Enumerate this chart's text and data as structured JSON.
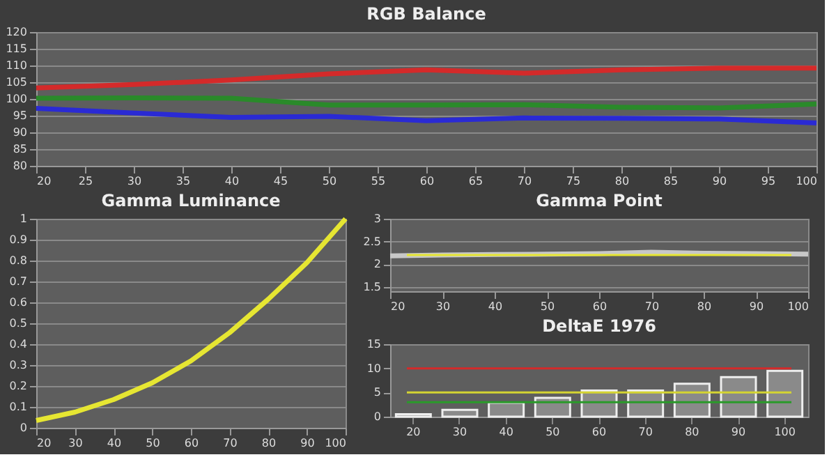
{
  "chart_data": [
    {
      "type": "line",
      "title": "RGB Balance",
      "x": [
        20,
        30,
        40,
        50,
        60,
        70,
        80,
        90,
        100
      ],
      "xlim": [
        20,
        100
      ],
      "xticks": [
        20,
        25,
        30,
        35,
        40,
        45,
        50,
        55,
        60,
        65,
        70,
        75,
        80,
        85,
        90,
        95,
        100
      ],
      "ylim": [
        80,
        120
      ],
      "yticks": [
        80,
        85,
        90,
        95,
        100,
        105,
        110,
        115,
        120
      ],
      "grid": "y",
      "series": [
        {
          "color": "#d42a2a",
          "values": [
            103.3,
            104.3,
            105.7,
            107.5,
            108.7,
            107.7,
            108.7,
            109.2,
            109.2
          ]
        },
        {
          "color": "#2a8a2a",
          "values": [
            100.2,
            100.3,
            100.2,
            98.2,
            98.2,
            98.3,
            97.5,
            97.3,
            98.5
          ]
        },
        {
          "color": "#2a2ad4",
          "values": [
            97.2,
            95.8,
            94.5,
            94.8,
            93.5,
            94.3,
            94.2,
            94.0,
            92.8
          ]
        }
      ]
    },
    {
      "type": "line",
      "title": "Gamma Luminance",
      "x": [
        20,
        30,
        40,
        50,
        60,
        70,
        80,
        90,
        100
      ],
      "xlim": [
        20,
        100
      ],
      "xticks": [
        20,
        30,
        40,
        50,
        60,
        70,
        80,
        90,
        100
      ],
      "ylim": [
        0,
        1
      ],
      "yticks": [
        {
          "value": 0,
          "label": "0"
        },
        0.1,
        0.2,
        0.3,
        0.4,
        0.5,
        0.6,
        0.7,
        0.8,
        0.9,
        {
          "value": 1,
          "label": "1"
        }
      ],
      "grid": "y",
      "series": [
        {
          "color": "#e6e632",
          "values": [
            0.035,
            0.075,
            0.135,
            0.215,
            0.32,
            0.455,
            0.615,
            0.79,
            1.0
          ]
        }
      ]
    },
    {
      "type": "line",
      "title": "Gamma Point",
      "x": [
        20,
        30,
        40,
        50,
        60,
        70,
        80,
        90,
        100
      ],
      "xlim": [
        20,
        100
      ],
      "xticks": [
        20,
        30,
        40,
        50,
        60,
        70,
        80,
        90,
        100
      ],
      "ylim": [
        1.4,
        3
      ],
      "yticks": [
        1.5,
        2,
        2.5,
        3
      ],
      "grid": "y",
      "series": [
        {
          "color": "#c8c8c8",
          "values": [
            2.18,
            2.2,
            2.21,
            2.22,
            2.23,
            2.26,
            2.24,
            2.23,
            2.22
          ]
        }
      ],
      "ref_lines": [
        {
          "axis": "y",
          "value": 2.2,
          "color": "#e6e632"
        }
      ]
    },
    {
      "type": "bar",
      "title": "DeltaE 1976",
      "categories": [
        "20",
        "30",
        "40",
        "50",
        "60",
        "70",
        "80",
        "90",
        "100"
      ],
      "values": [
        0.5,
        1.4,
        2.9,
        3.9,
        5.4,
        5.4,
        6.8,
        8.2,
        9.5
      ],
      "color": "#8a8a8a",
      "ylim": [
        0,
        15
      ],
      "yticks": [
        0,
        5,
        10,
        15
      ],
      "ref_lines": [
        {
          "axis": "y",
          "value": 10,
          "color": "#d42a2a"
        },
        {
          "axis": "y",
          "value": 5,
          "color": "#d4d432"
        },
        {
          "axis": "y",
          "value": 3,
          "color": "#2a9a2a"
        }
      ]
    }
  ]
}
